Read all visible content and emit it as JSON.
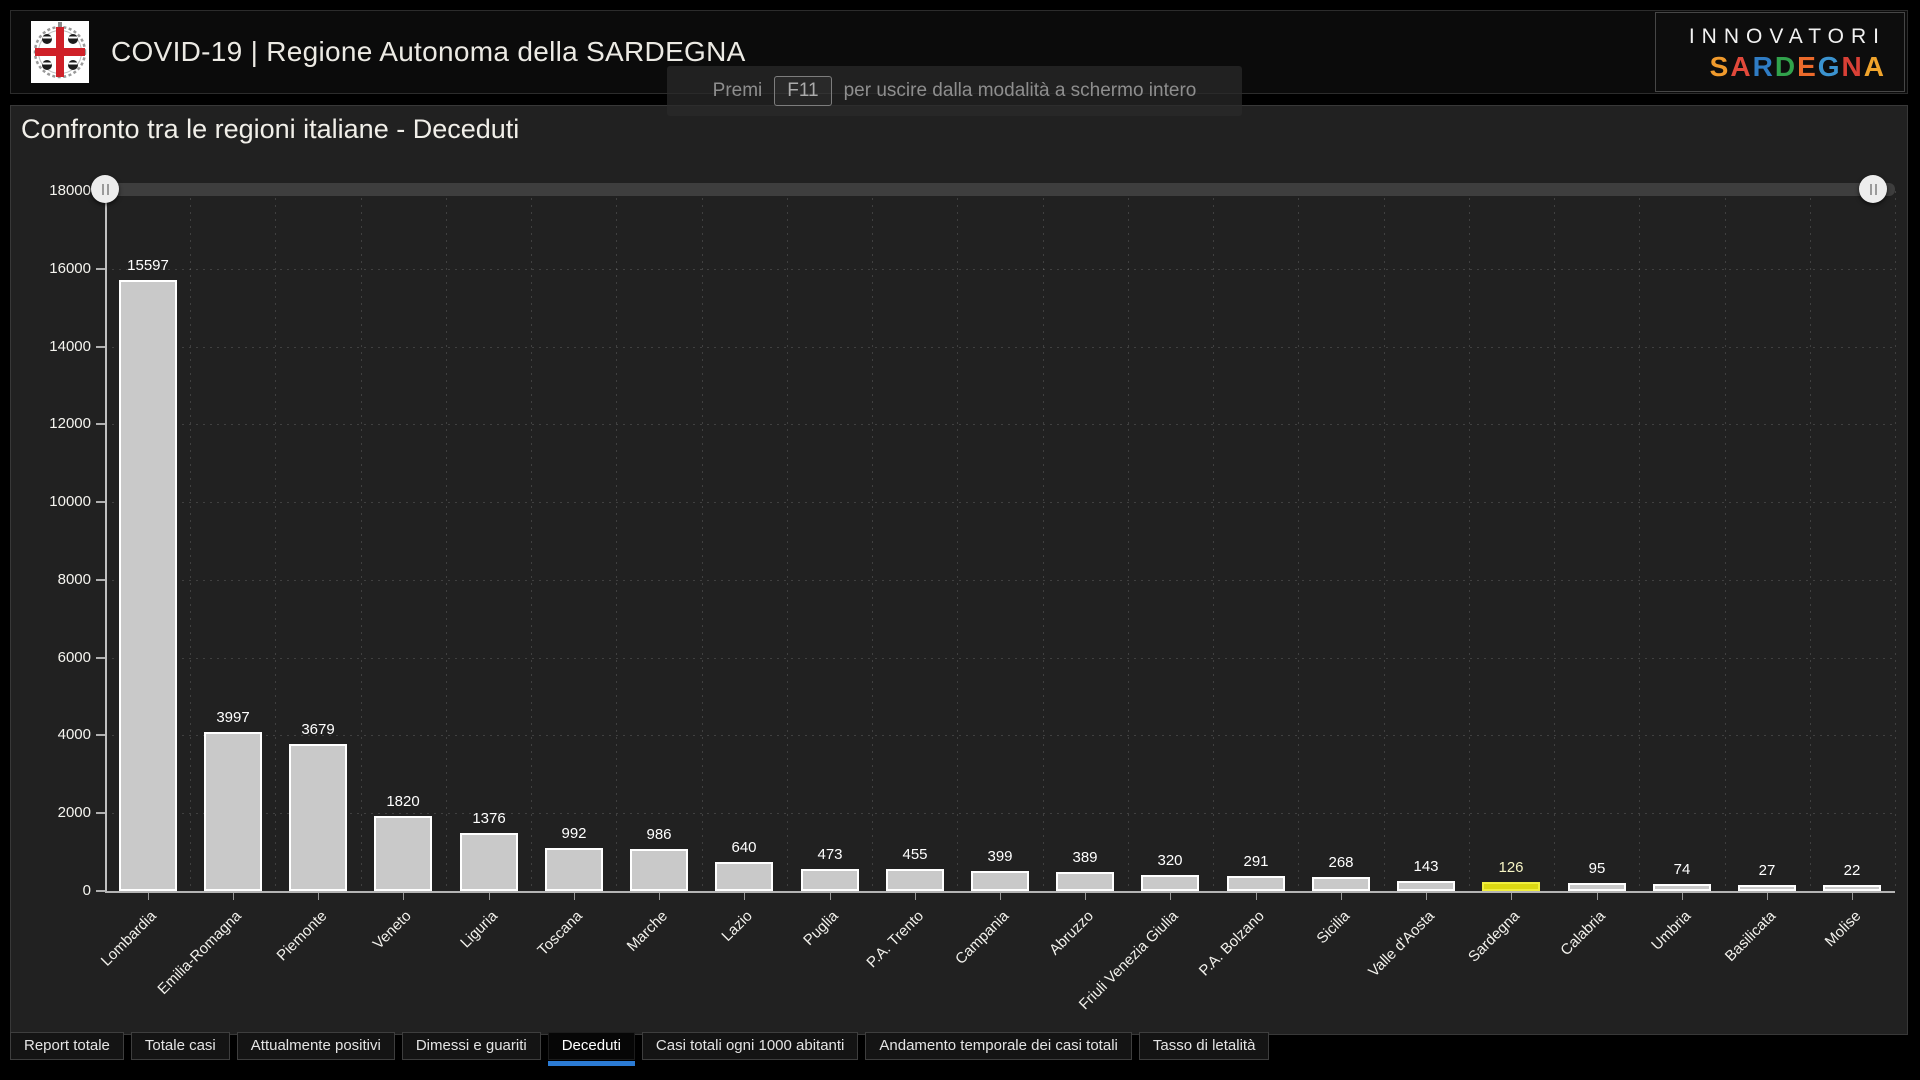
{
  "header": {
    "title": "COVID-19 | Regione Autonoma della SARDEGNA",
    "logo": "stemma-quattro-mori-sardegna",
    "brand": {
      "line1": "INNOVATORI",
      "line2_letters": [
        "S",
        "A",
        "R",
        "D",
        "E",
        "G",
        "N",
        "A"
      ],
      "line2_colors": [
        "#f09a2c",
        "#e2493b",
        "#2f7cc4",
        "#31a24c",
        "#ec6a2b",
        "#3b93cf",
        "#d94036",
        "#f0a42c"
      ]
    }
  },
  "fullscreen_toast": {
    "prefix": "Premi",
    "key_label": "F11",
    "suffix": "per uscire dalla modalità a schermo intero"
  },
  "chart": {
    "title": "Confronto tra le regioni italiane - Deceduti"
  },
  "chart_data": {
    "type": "bar",
    "title": "Confronto tra le regioni italiane - Deceduti",
    "categories": [
      "Lombardia",
      "Emilia-Romagna",
      "Piemonte",
      "Veneto",
      "Liguria",
      "Toscana",
      "Marche",
      "Lazio",
      "Puglia",
      "P.A. Trento",
      "Campania",
      "Abruzzo",
      "Friuli Venezia Giulia",
      "P.A. Bolzano",
      "Sicilia",
      "Valle d'Aosta",
      "Sardegna",
      "Calabria",
      "Umbria",
      "Basilicata",
      "Molise"
    ],
    "values": [
      15597,
      3997,
      3679,
      1820,
      1376,
      992,
      986,
      640,
      473,
      455,
      399,
      389,
      320,
      291,
      268,
      143,
      126,
      95,
      74,
      27,
      22
    ],
    "ylim": [
      0,
      18000
    ],
    "ytick_step": 2000,
    "grid": true,
    "legend": "none",
    "bar_color": "#c9c9c9",
    "bar_border_color": "#ffffff",
    "highlight_category": "Sardegna",
    "highlight_color": "#dcd812",
    "highlight_border_color": "#f0ee3e",
    "highlight_value_color": "#f6f4c4"
  },
  "tabs": {
    "items": [
      "Report totale",
      "Totale casi",
      "Attualmente positivi",
      "Dimessi e guariti",
      "Deceduti",
      "Casi totali ogni 1000 abitanti",
      "Andamento temporale dei casi totali",
      "Tasso di letalità"
    ],
    "active": "Deceduti",
    "active_color": "#2b7bd4"
  }
}
